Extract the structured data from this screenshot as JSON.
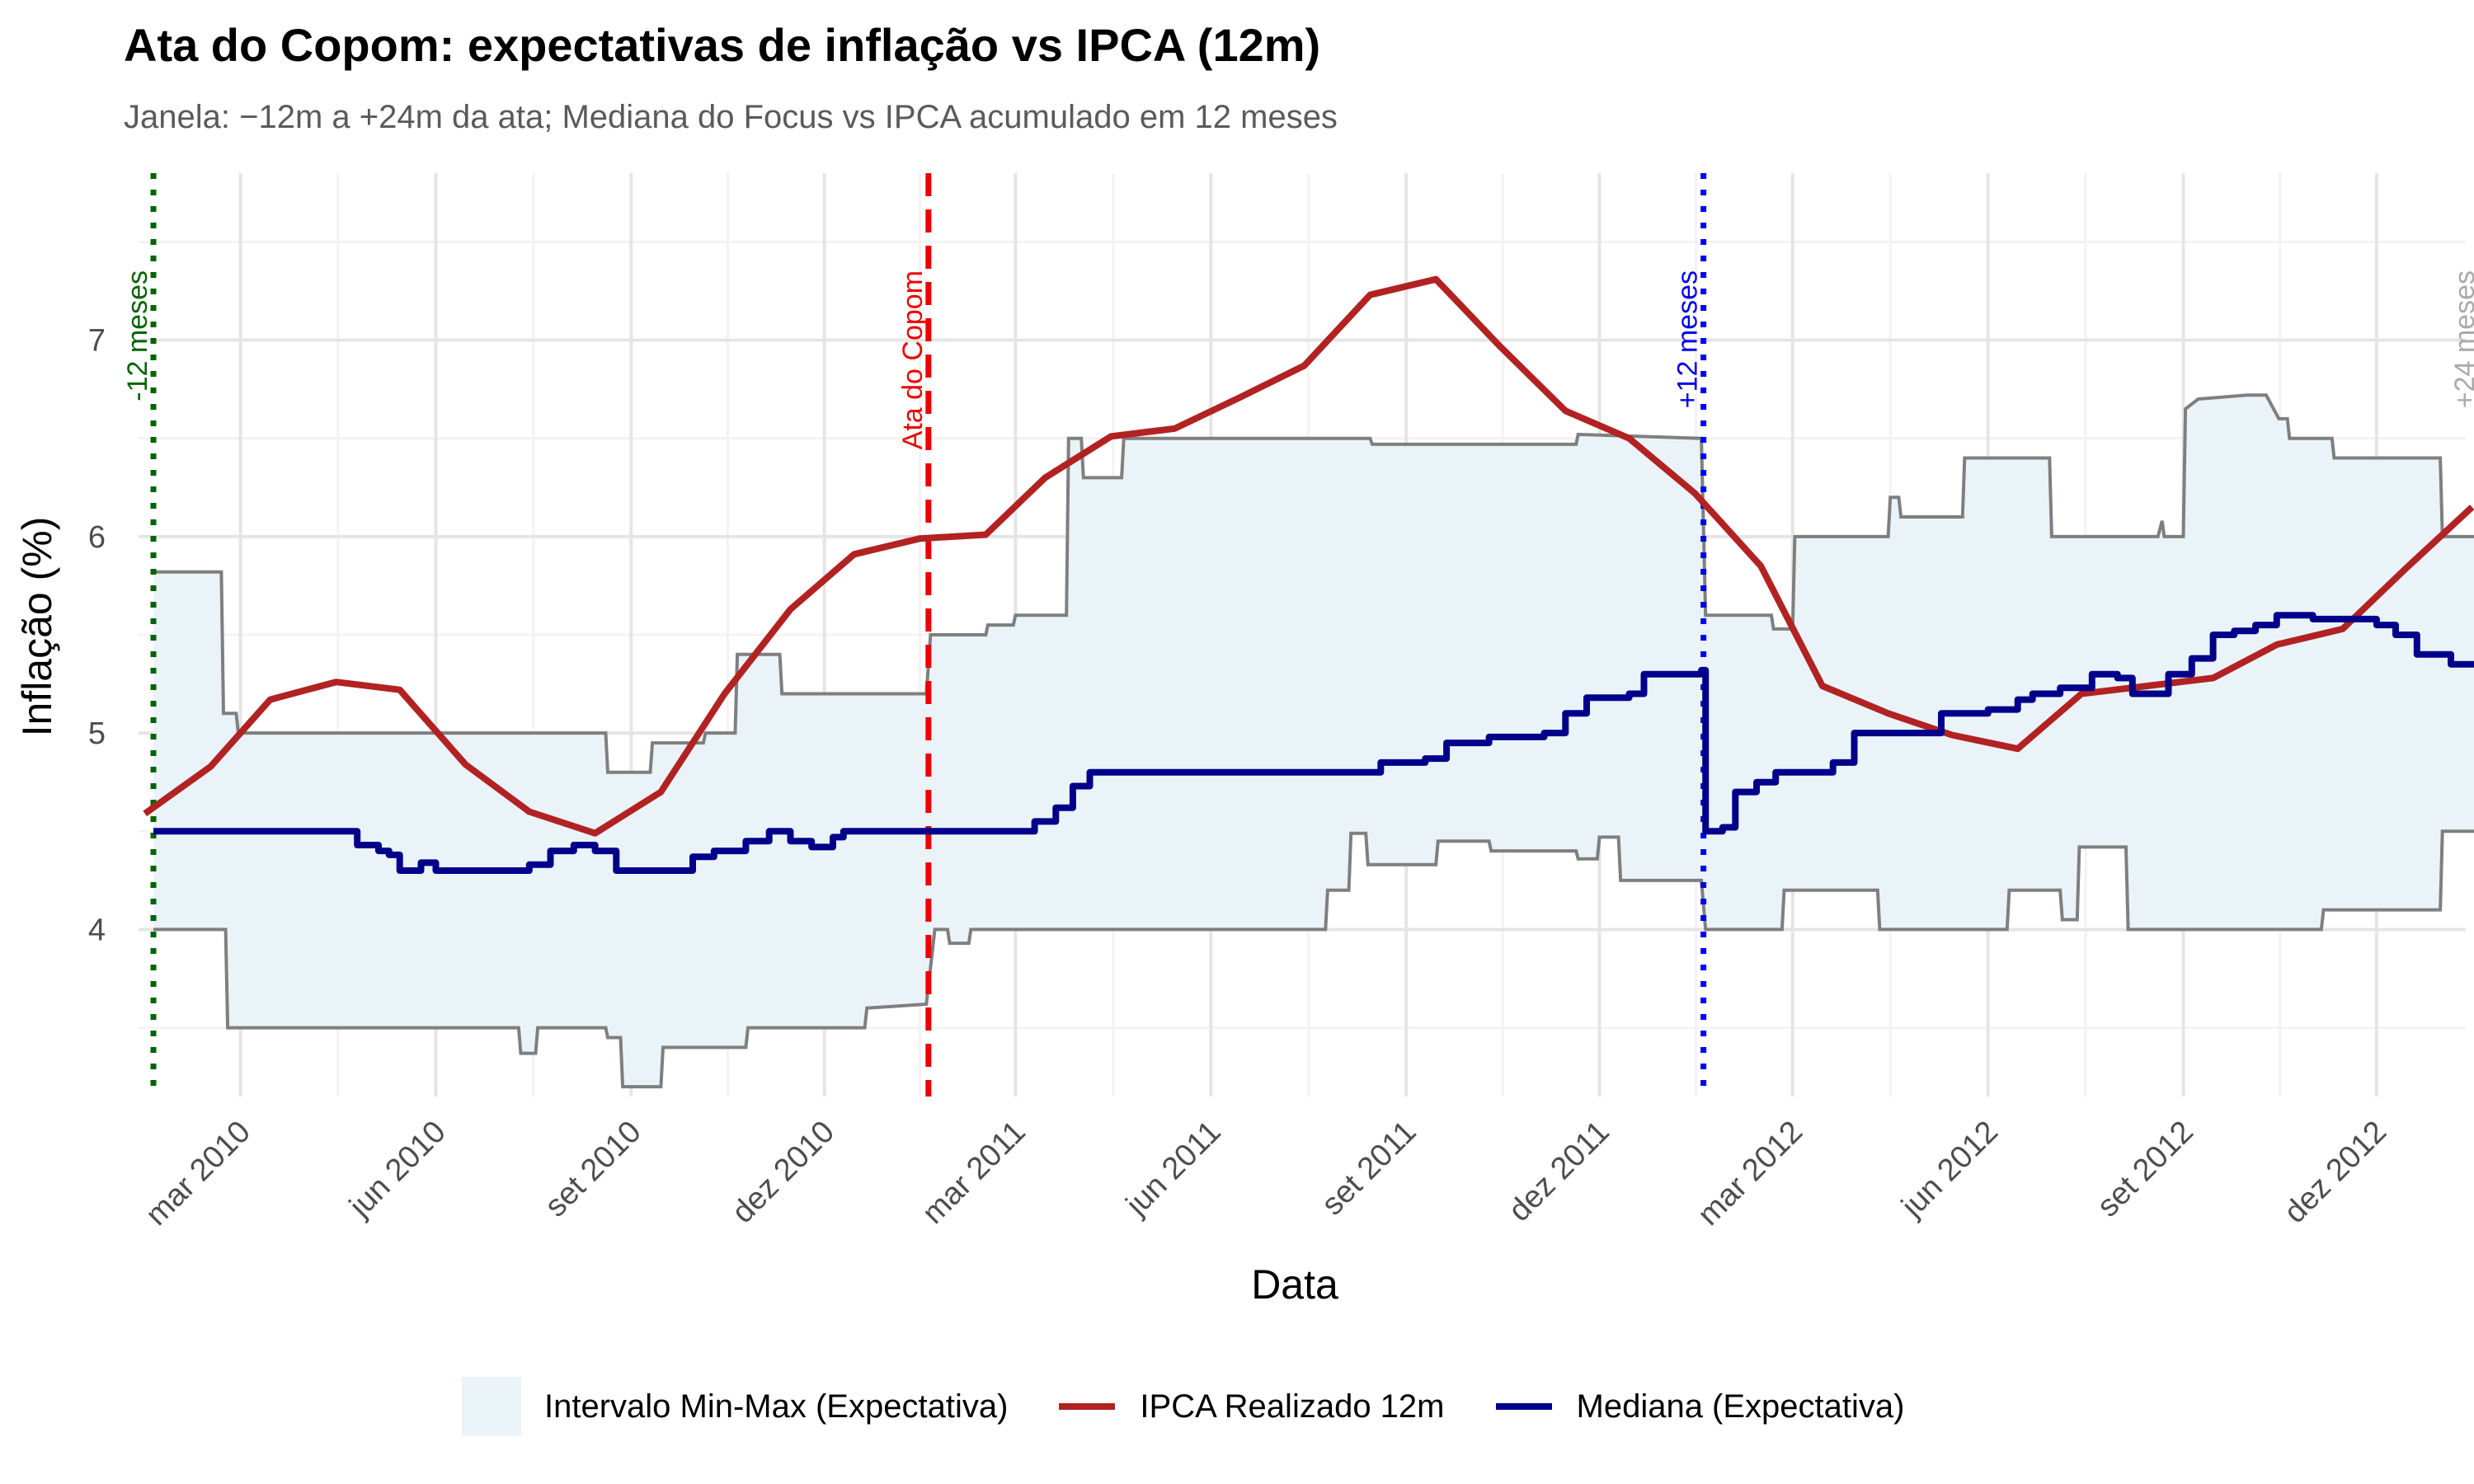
{
  "chart_data": {
    "type": "line",
    "title": "Ata do Copom: expectativas de inflação vs IPCA (12m)",
    "subtitle": "Janela: −12m a +24m da ata; Mediana do Focus vs IPCA acumulado em 12 meses",
    "xlabel": "Data",
    "ylabel": "Inflação (%)",
    "xlim": [
      "2010-01-12",
      "2013-01-12"
    ],
    "ylim": [
      3.15,
      7.85
    ],
    "y_ticks": [
      4,
      5,
      6,
      7
    ],
    "x_ticks": [
      {
        "date": "2010-03-01",
        "label": "mar 2010"
      },
      {
        "date": "2010-06-01",
        "label": "jun 2010"
      },
      {
        "date": "2010-09-01",
        "label": "set 2010"
      },
      {
        "date": "2010-12-01",
        "label": "dez 2010"
      },
      {
        "date": "2011-03-01",
        "label": "mar 2011"
      },
      {
        "date": "2011-06-01",
        "label": "jun 2011"
      },
      {
        "date": "2011-09-01",
        "label": "set 2011"
      },
      {
        "date": "2011-12-01",
        "label": "dez 2011"
      },
      {
        "date": "2012-03-01",
        "label": "mar 2012"
      },
      {
        "date": "2012-06-01",
        "label": "jun 2012"
      },
      {
        "date": "2012-09-01",
        "label": "set 2012"
      },
      {
        "date": "2012-12-01",
        "label": "dez 2012"
      }
    ],
    "grid": true,
    "legend_position": "bottom",
    "vlines": [
      {
        "date": "2010-01-19",
        "label": "-12 meses",
        "color": "#006400",
        "style": "dotted"
      },
      {
        "date": "2011-01-19",
        "label": "Ata do Copom",
        "color": "#ee0000",
        "style": "dashed"
      },
      {
        "date": "2012-01-19",
        "label": "+12 meses",
        "color": "#0000ee",
        "style": "dotted"
      },
      {
        "date": "2013-01-19",
        "label": "+24 meses",
        "color": "#aaaaaa",
        "style": "dotted"
      }
    ],
    "series": [
      {
        "name": "Intervalo Min-Max (Expectativa)",
        "kind": "band",
        "fill": "#eaf4f8",
        "stroke": "#7f7f7f",
        "upper": [
          [
            "2010-01-19",
            5.82
          ],
          [
            "2010-02-20",
            5.82
          ],
          [
            "2010-02-21",
            5.1
          ],
          [
            "2010-02-27",
            5.1
          ],
          [
            "2010-02-28",
            5.0
          ],
          [
            "2010-08-20",
            5.0
          ],
          [
            "2010-08-21",
            4.8
          ],
          [
            "2010-09-10",
            4.8
          ],
          [
            "2010-09-11",
            4.95
          ],
          [
            "2010-10-05",
            4.95
          ],
          [
            "2010-10-06",
            5.0
          ],
          [
            "2010-10-20",
            5.0
          ],
          [
            "2010-10-21",
            5.4
          ],
          [
            "2010-11-10",
            5.4
          ],
          [
            "2010-11-11",
            5.2
          ],
          [
            "2011-01-18",
            5.2
          ],
          [
            "2011-01-20",
            5.5
          ],
          [
            "2011-02-15",
            5.5
          ],
          [
            "2011-02-16",
            5.55
          ],
          [
            "2011-02-28",
            5.55
          ],
          [
            "2011-03-01",
            5.6
          ],
          [
            "2011-03-25",
            5.6
          ],
          [
            "2011-03-26",
            6.5
          ],
          [
            "2011-04-01",
            6.5
          ],
          [
            "2011-04-02",
            6.3
          ],
          [
            "2011-04-20",
            6.3
          ],
          [
            "2011-04-21",
            6.5
          ],
          [
            "2011-08-15",
            6.5
          ],
          [
            "2011-08-16",
            6.47
          ],
          [
            "2011-11-20",
            6.47
          ],
          [
            "2011-11-21",
            6.52
          ],
          [
            "2012-01-18",
            6.5
          ],
          [
            "2012-01-20",
            5.6
          ],
          [
            "2012-02-20",
            5.6
          ],
          [
            "2012-02-21",
            5.53
          ],
          [
            "2012-03-01",
            5.53
          ],
          [
            "2012-03-02",
            6.0
          ],
          [
            "2012-04-15",
            6.0
          ],
          [
            "2012-04-16",
            6.2
          ],
          [
            "2012-04-20",
            6.2
          ],
          [
            "2012-04-21",
            6.1
          ],
          [
            "2012-05-20",
            6.1
          ],
          [
            "2012-05-21",
            6.4
          ],
          [
            "2012-06-30",
            6.4
          ],
          [
            "2012-07-01",
            6.0
          ],
          [
            "2012-08-20",
            6.0
          ],
          [
            "2012-08-22",
            6.08
          ],
          [
            "2012-08-23",
            6.0
          ],
          [
            "2012-09-01",
            6.0
          ],
          [
            "2012-09-02",
            6.65
          ],
          [
            "2012-09-08",
            6.7
          ],
          [
            "2012-10-01",
            6.72
          ],
          [
            "2012-10-10",
            6.72
          ],
          [
            "2012-10-16",
            6.6
          ],
          [
            "2012-10-20",
            6.6
          ],
          [
            "2012-10-21",
            6.5
          ],
          [
            "2012-11-10",
            6.5
          ],
          [
            "2012-11-11",
            6.4
          ],
          [
            "2012-12-31",
            6.4
          ],
          [
            "2013-01-01",
            6.0
          ],
          [
            "2013-01-19",
            6.0
          ]
        ],
        "lower": [
          [
            "2010-01-19",
            4.0
          ],
          [
            "2010-02-22",
            4.0
          ],
          [
            "2010-02-23",
            3.5
          ],
          [
            "2010-07-10",
            3.5
          ],
          [
            "2010-07-11",
            3.37
          ],
          [
            "2010-07-18",
            3.37
          ],
          [
            "2010-07-19",
            3.5
          ],
          [
            "2010-08-20",
            3.5
          ],
          [
            "2010-08-21",
            3.45
          ],
          [
            "2010-08-27",
            3.45
          ],
          [
            "2010-08-28",
            3.2
          ],
          [
            "2010-09-15",
            3.2
          ],
          [
            "2010-09-16",
            3.4
          ],
          [
            "2010-10-25",
            3.4
          ],
          [
            "2010-10-26",
            3.5
          ],
          [
            "2010-12-20",
            3.5
          ],
          [
            "2010-12-21",
            3.6
          ],
          [
            "2011-01-18",
            3.62
          ],
          [
            "2011-01-22",
            4.0
          ],
          [
            "2011-01-28",
            4.0
          ],
          [
            "2011-01-29",
            3.93
          ],
          [
            "2011-02-07",
            3.93
          ],
          [
            "2011-02-08",
            4.0
          ],
          [
            "2011-07-25",
            4.0
          ],
          [
            "2011-07-26",
            4.2
          ],
          [
            "2011-08-05",
            4.2
          ],
          [
            "2011-08-06",
            4.49
          ],
          [
            "2011-08-13",
            4.49
          ],
          [
            "2011-08-14",
            4.33
          ],
          [
            "2011-09-15",
            4.33
          ],
          [
            "2011-09-16",
            4.45
          ],
          [
            "2011-10-10",
            4.45
          ],
          [
            "2011-10-11",
            4.4
          ],
          [
            "2011-11-20",
            4.4
          ],
          [
            "2011-11-21",
            4.36
          ],
          [
            "2011-11-30",
            4.36
          ],
          [
            "2011-12-01",
            4.47
          ],
          [
            "2011-12-10",
            4.47
          ],
          [
            "2011-12-11",
            4.25
          ],
          [
            "2012-01-18",
            4.25
          ],
          [
            "2012-01-20",
            4.0
          ],
          [
            "2012-02-25",
            4.0
          ],
          [
            "2012-02-26",
            4.2
          ],
          [
            "2012-04-10",
            4.2
          ],
          [
            "2012-04-11",
            4.0
          ],
          [
            "2012-06-10",
            4.0
          ],
          [
            "2012-06-11",
            4.2
          ],
          [
            "2012-07-05",
            4.2
          ],
          [
            "2012-07-06",
            4.05
          ],
          [
            "2012-07-13",
            4.05
          ],
          [
            "2012-07-14",
            4.42
          ],
          [
            "2012-08-05",
            4.42
          ],
          [
            "2012-08-06",
            4.0
          ],
          [
            "2012-11-05",
            4.0
          ],
          [
            "2012-11-06",
            4.1
          ],
          [
            "2012-12-31",
            4.1
          ],
          [
            "2013-01-01",
            4.5
          ],
          [
            "2013-01-19",
            4.5
          ]
        ]
      },
      {
        "name": "IPCA Realizado 12m",
        "kind": "line",
        "color": "#b22222",
        "points": [
          [
            "2010-01-15",
            4.59
          ],
          [
            "2010-02-15",
            4.83
          ],
          [
            "2010-03-15",
            5.17
          ],
          [
            "2010-04-15",
            5.26
          ],
          [
            "2010-05-15",
            5.22
          ],
          [
            "2010-06-15",
            4.84
          ],
          [
            "2010-07-15",
            4.6
          ],
          [
            "2010-08-15",
            4.49
          ],
          [
            "2010-09-15",
            4.7
          ],
          [
            "2010-10-15",
            5.2
          ],
          [
            "2010-11-15",
            5.63
          ],
          [
            "2010-12-15",
            5.91
          ],
          [
            "2011-01-15",
            5.99
          ],
          [
            "2011-02-15",
            6.01
          ],
          [
            "2011-03-15",
            6.3
          ],
          [
            "2011-04-15",
            6.51
          ],
          [
            "2011-05-15",
            6.55
          ],
          [
            "2011-06-15",
            6.71
          ],
          [
            "2011-07-15",
            6.87
          ],
          [
            "2011-08-15",
            7.23
          ],
          [
            "2011-09-15",
            7.31
          ],
          [
            "2011-10-15",
            6.97
          ],
          [
            "2011-11-15",
            6.64
          ],
          [
            "2011-12-15",
            6.5
          ],
          [
            "2012-01-15",
            6.22
          ],
          [
            "2012-02-15",
            5.85
          ],
          [
            "2012-03-15",
            5.24
          ],
          [
            "2012-04-15",
            5.1
          ],
          [
            "2012-05-15",
            4.99
          ],
          [
            "2012-06-15",
            4.92
          ],
          [
            "2012-07-15",
            5.2
          ],
          [
            "2012-08-15",
            5.24
          ],
          [
            "2012-09-15",
            5.28
          ],
          [
            "2012-10-15",
            5.45
          ],
          [
            "2012-11-15",
            5.53
          ],
          [
            "2012-12-15",
            5.84
          ],
          [
            "2013-01-15",
            6.15
          ]
        ]
      },
      {
        "name": "Mediana (Expectativa)",
        "kind": "step",
        "color": "#00008b",
        "points": [
          [
            "2010-01-19",
            4.5
          ],
          [
            "2010-04-20",
            4.5
          ],
          [
            "2010-04-25",
            4.43
          ],
          [
            "2010-05-05",
            4.4
          ],
          [
            "2010-05-10",
            4.38
          ],
          [
            "2010-05-15",
            4.3
          ],
          [
            "2010-05-25",
            4.34
          ],
          [
            "2010-06-01",
            4.3
          ],
          [
            "2010-07-15",
            4.33
          ],
          [
            "2010-07-25",
            4.4
          ],
          [
            "2010-08-05",
            4.43
          ],
          [
            "2010-08-15",
            4.4
          ],
          [
            "2010-08-25",
            4.3
          ],
          [
            "2010-09-20",
            4.3
          ],
          [
            "2010-09-30",
            4.37
          ],
          [
            "2010-10-10",
            4.4
          ],
          [
            "2010-10-25",
            4.45
          ],
          [
            "2010-11-05",
            4.5
          ],
          [
            "2010-11-15",
            4.45
          ],
          [
            "2010-11-25",
            4.42
          ],
          [
            "2010-12-05",
            4.47
          ],
          [
            "2010-12-10",
            4.5
          ],
          [
            "2011-02-28",
            4.5
          ],
          [
            "2011-03-10",
            4.55
          ],
          [
            "2011-03-20",
            4.62
          ],
          [
            "2011-03-28",
            4.73
          ],
          [
            "2011-04-05",
            4.8
          ],
          [
            "2011-08-10",
            4.8
          ],
          [
            "2011-08-20",
            4.85
          ],
          [
            "2011-09-10",
            4.87
          ],
          [
            "2011-09-20",
            4.95
          ],
          [
            "2011-10-10",
            4.98
          ],
          [
            "2011-11-05",
            5.0
          ],
          [
            "2011-11-15",
            5.1
          ],
          [
            "2011-11-25",
            5.18
          ],
          [
            "2011-12-15",
            5.2
          ],
          [
            "2011-12-22",
            5.3
          ],
          [
            "2012-01-18",
            5.32
          ],
          [
            "2012-01-20",
            4.5
          ],
          [
            "2012-01-28",
            4.52
          ],
          [
            "2012-02-03",
            4.7
          ],
          [
            "2012-02-13",
            4.75
          ],
          [
            "2012-02-22",
            4.8
          ],
          [
            "2012-03-20",
            4.85
          ],
          [
            "2012-03-30",
            5.0
          ],
          [
            "2012-05-01",
            5.0
          ],
          [
            "2012-05-10",
            5.1
          ],
          [
            "2012-06-01",
            5.12
          ],
          [
            "2012-06-15",
            5.17
          ],
          [
            "2012-06-22",
            5.2
          ],
          [
            "2012-07-05",
            5.23
          ],
          [
            "2012-07-20",
            5.3
          ],
          [
            "2012-08-01",
            5.28
          ],
          [
            "2012-08-08",
            5.2
          ],
          [
            "2012-08-25",
            5.3
          ],
          [
            "2012-09-05",
            5.38
          ],
          [
            "2012-09-15",
            5.5
          ],
          [
            "2012-09-25",
            5.52
          ],
          [
            "2012-10-05",
            5.55
          ],
          [
            "2012-10-15",
            5.6
          ],
          [
            "2012-11-01",
            5.58
          ],
          [
            "2012-11-20",
            5.58
          ],
          [
            "2012-12-01",
            5.55
          ],
          [
            "2012-12-10",
            5.5
          ],
          [
            "2012-12-20",
            5.4
          ],
          [
            "2013-01-05",
            5.35
          ],
          [
            "2013-01-19",
            5.31
          ]
        ]
      }
    ]
  }
}
